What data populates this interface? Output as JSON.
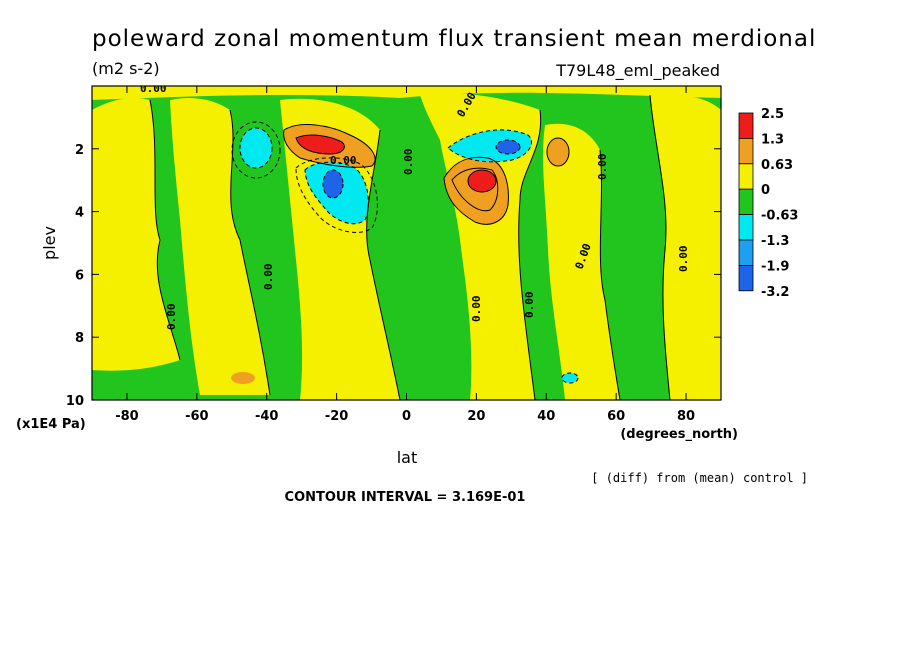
{
  "header": {
    "title": "poleward zonal momentum flux transient mean merdional",
    "units": "(m2 s-2)",
    "run_label": "T79L48_eml_peaked"
  },
  "footer": {
    "diff_note": "[ (diff) from (mean) control ]",
    "contour_interval": "CONTOUR INTERVAL = 3.169E-01"
  },
  "chart_data": {
    "type": "heatmap",
    "title": "poleward zonal momentum flux transient mean merdional",
    "xlabel": "lat",
    "xunits": "(degrees_north)",
    "ylabel": "plev",
    "yunits": "(x1E4 Pa)",
    "xlim": [
      -90,
      90
    ],
    "ylim": [
      10,
      0
    ],
    "x_ticks": [
      -80,
      -60,
      -40,
      -20,
      0,
      20,
      40,
      60,
      80
    ],
    "x_tick_labels": [
      "-80",
      "-60",
      "-40",
      "-20",
      "0",
      "20",
      "40",
      "60",
      "80"
    ],
    "y_ticks": [
      2,
      4,
      6,
      8,
      10
    ],
    "y_tick_labels": [
      "2",
      "4",
      "6",
      "8",
      "10"
    ],
    "colorbar": {
      "labels": [
        "2.5",
        "1.3",
        "0.63",
        "0",
        "-0.63",
        "-1.3",
        "-1.9",
        "-3.2"
      ],
      "colors": [
        "#ef1c1c",
        "#f0a020",
        "#f5f000",
        "#22c41e",
        "#00e8f0",
        "#1ea0f0",
        "#1e64e8"
      ]
    },
    "colors": {
      "positive_low": "#f5f000",
      "positive_mid": "#f0a020",
      "positive_high": "#ef1c1c",
      "negative_low": "#22c41e",
      "negative_mid": "#00e8f0",
      "negative_high": "#1e64e8"
    },
    "features": [
      {
        "kind": "max",
        "lat": -25,
        "plev": 2.0,
        "value": 2.5
      },
      {
        "kind": "min",
        "lat": -19,
        "plev": 3.2,
        "value": -1.9
      },
      {
        "kind": "max",
        "lat": 22,
        "plev": 3.1,
        "value": 2.5
      },
      {
        "kind": "min",
        "lat": 28,
        "plev": 2.0,
        "value": -1.3
      },
      {
        "kind": "min",
        "lat": -43,
        "plev": 2.2,
        "value": -1.3
      },
      {
        "kind": "max",
        "lat": 45,
        "plev": 2.2,
        "value": 1.3
      }
    ],
    "contour_labels": [
      "0.00",
      "0.00",
      "0.00",
      "0.00",
      "0.00",
      "0.00",
      "0.00",
      "0.00",
      "0.00",
      "0.00",
      "0.00"
    ]
  }
}
